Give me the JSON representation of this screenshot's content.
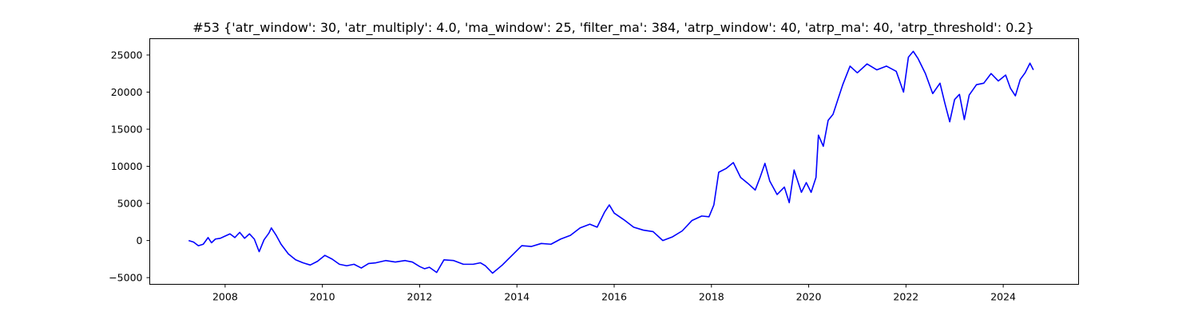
{
  "chart_data": {
    "type": "line",
    "title": "#53 {'atr_window': 30, 'atr_multiply': 4.0, 'ma_window': 25, 'filter_ma': 384, 'atrp_window': 40, 'atrp_ma': 40, 'atrp_threshold': 0.2}",
    "xlabel": "",
    "ylabel": "",
    "xlim": [
      2006.45,
      2025.55
    ],
    "ylim": [
      -5900,
      27200
    ],
    "grid": false,
    "legend": "none",
    "xticks": [
      2008,
      2010,
      2012,
      2014,
      2016,
      2018,
      2020,
      2022,
      2024
    ],
    "xtick_labels": [
      "2008",
      "2010",
      "2012",
      "2014",
      "2016",
      "2018",
      "2020",
      "2022",
      "2024"
    ],
    "yticks": [
      -5000,
      0,
      5000,
      10000,
      15000,
      20000,
      25000
    ],
    "ytick_labels": [
      "−5000",
      "0",
      "5000",
      "10000",
      "15000",
      "20000",
      "25000"
    ],
    "series": [
      {
        "color": "#0000ff",
        "x": [
          2007.25,
          2007.35,
          2007.45,
          2007.55,
          2007.65,
          2007.72,
          2007.8,
          2007.9,
          2008.0,
          2008.1,
          2008.2,
          2008.3,
          2008.4,
          2008.5,
          2008.6,
          2008.7,
          2008.8,
          2008.9,
          2008.95,
          2009.05,
          2009.15,
          2009.3,
          2009.45,
          2009.6,
          2009.75,
          2009.9,
          2010.05,
          2010.2,
          2010.35,
          2010.5,
          2010.65,
          2010.8,
          2010.95,
          2011.1,
          2011.3,
          2011.5,
          2011.7,
          2011.85,
          2012.0,
          2012.1,
          2012.2,
          2012.35,
          2012.5,
          2012.7,
          2012.9,
          2013.1,
          2013.25,
          2013.35,
          2013.5,
          2013.7,
          2013.9,
          2014.1,
          2014.3,
          2014.5,
          2014.7,
          2014.9,
          2015.1,
          2015.3,
          2015.5,
          2015.65,
          2015.8,
          2015.9,
          2016.0,
          2016.2,
          2016.4,
          2016.6,
          2016.8,
          2017.0,
          2017.2,
          2017.4,
          2017.6,
          2017.8,
          2017.95,
          2018.05,
          2018.15,
          2018.3,
          2018.45,
          2018.6,
          2018.75,
          2018.9,
          2019.0,
          2019.1,
          2019.2,
          2019.35,
          2019.5,
          2019.6,
          2019.7,
          2019.85,
          2019.95,
          2020.05,
          2020.15,
          2020.2,
          2020.3,
          2020.4,
          2020.5,
          2020.6,
          2020.7,
          2020.85,
          2021.0,
          2021.2,
          2021.4,
          2021.6,
          2021.8,
          2021.95,
          2022.05,
          2022.15,
          2022.25,
          2022.4,
          2022.55,
          2022.7,
          2022.8,
          2022.9,
          2023.0,
          2023.1,
          2023.2,
          2023.3,
          2023.45,
          2023.6,
          2023.75,
          2023.9,
          2024.05,
          2024.15,
          2024.25,
          2024.35,
          2024.45,
          2024.55,
          2024.62
        ],
        "y": [
          0,
          -200,
          -700,
          -500,
          400,
          -300,
          200,
          300,
          600,
          900,
          400,
          1100,
          300,
          900,
          200,
          -1500,
          100,
          1000,
          1700,
          700,
          -500,
          -1800,
          -2600,
          -3000,
          -3300,
          -2800,
          -2000,
          -2500,
          -3200,
          -3400,
          -3200,
          -3700,
          -3100,
          -3000,
          -2700,
          -2900,
          -2700,
          -2900,
          -3500,
          -3800,
          -3600,
          -4300,
          -2600,
          -2700,
          -3200,
          -3200,
          -3000,
          -3400,
          -4400,
          -3300,
          -2000,
          -700,
          -800,
          -400,
          -500,
          200,
          700,
          1700,
          2200,
          1800,
          3800,
          4800,
          3700,
          2800,
          1800,
          1400,
          1200,
          0,
          500,
          1300,
          2700,
          3300,
          3200,
          4800,
          9200,
          9700,
          10500,
          8500,
          7700,
          6800,
          8500,
          10400,
          8000,
          6200,
          7200,
          5100,
          9500,
          6500,
          7800,
          6500,
          8500,
          14200,
          12700,
          16200,
          17000,
          19000,
          21000,
          23500,
          22600,
          23800,
          23000,
          23500,
          22800,
          20000,
          24700,
          25500,
          24500,
          22500,
          19800,
          21200,
          18500,
          16000,
          19000,
          19700,
          16300,
          19600,
          21000,
          21200,
          22500,
          21500,
          22300,
          20500,
          19500,
          21700,
          22600,
          23900,
          23000
        ]
      }
    ]
  }
}
